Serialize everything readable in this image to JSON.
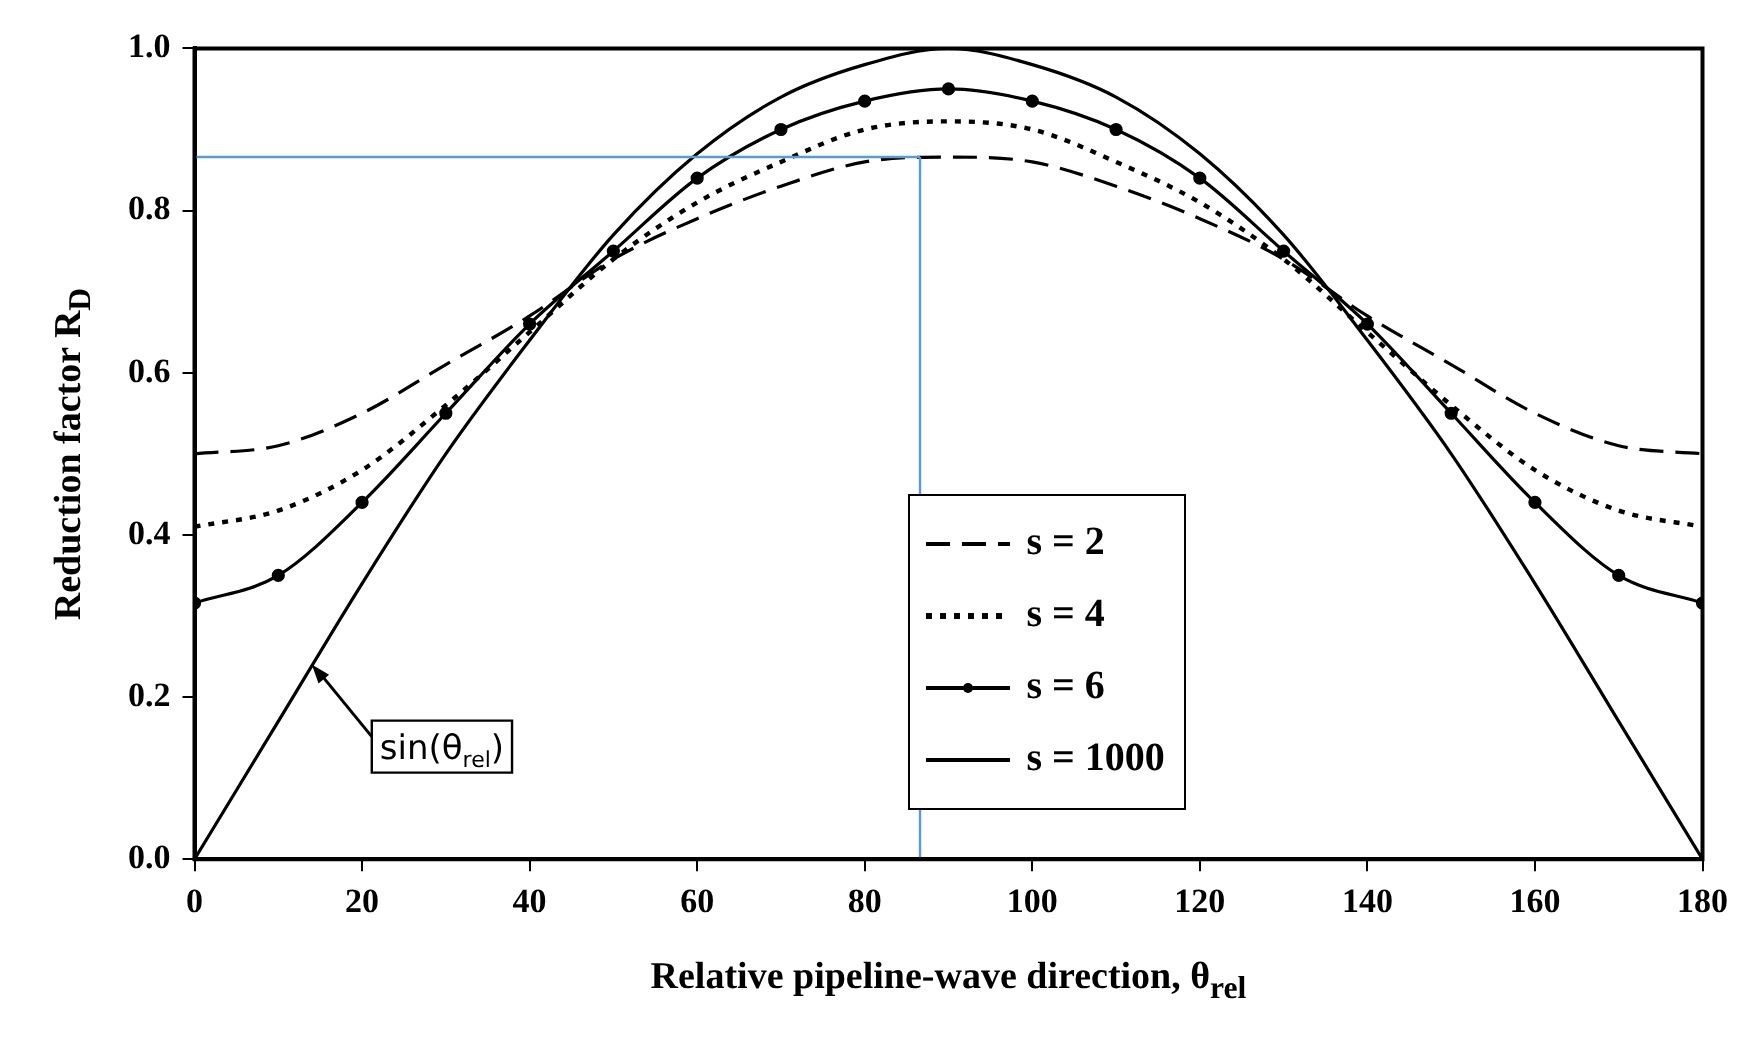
{
  "chart_data": {
    "type": "line",
    "xlabel": "Relative pipeline-wave direction, θ$_{rel}$",
    "ylabel": "Reduction factor R$_{D}$",
    "x": [
      0,
      10,
      20,
      30,
      40,
      50,
      60,
      70,
      80,
      90,
      100,
      110,
      120,
      130,
      140,
      150,
      160,
      170,
      180
    ],
    "series": [
      {
        "name": "s = 2",
        "color": "#000000",
        "line_style": "dashed",
        "marker": "none",
        "values": [
          0.5,
          0.51,
          0.55,
          0.61,
          0.67,
          0.74,
          0.79,
          0.83,
          0.86,
          0.866,
          0.86,
          0.83,
          0.79,
          0.74,
          0.67,
          0.61,
          0.55,
          0.51,
          0.5
        ]
      },
      {
        "name": "s = 4",
        "color": "#000000",
        "line_style": "dotted",
        "marker": "none",
        "values": [
          0.41,
          0.43,
          0.48,
          0.56,
          0.65,
          0.74,
          0.81,
          0.86,
          0.9,
          0.91,
          0.9,
          0.86,
          0.81,
          0.74,
          0.65,
          0.56,
          0.48,
          0.43,
          0.41
        ]
      },
      {
        "name": "s = 6",
        "color": "#000000",
        "line_style": "solid",
        "marker": "circle",
        "values": [
          0.316,
          0.35,
          0.44,
          0.55,
          0.66,
          0.75,
          0.84,
          0.9,
          0.935,
          0.95,
          0.935,
          0.9,
          0.84,
          0.75,
          0.66,
          0.55,
          0.44,
          0.35,
          0.316
        ]
      },
      {
        "name": "s = 1000",
        "color": "#000000",
        "line_style": "solid",
        "marker": "none",
        "values": [
          0,
          0.17,
          0.34,
          0.5,
          0.64,
          0.77,
          0.87,
          0.94,
          0.98,
          1.0,
          0.98,
          0.94,
          0.87,
          0.77,
          0.64,
          0.5,
          0.34,
          0.17,
          0
        ]
      }
    ],
    "xlim": [
      0,
      180
    ],
    "xticks": [
      0,
      20,
      40,
      60,
      80,
      100,
      120,
      140,
      160,
      180
    ],
    "ylim": [
      0,
      1
    ],
    "yticks": [
      {
        "value": 0,
        "label": "0.0"
      },
      {
        "value": 0.2,
        "label": "0.2"
      },
      {
        "value": 0.4,
        "label": "0.4"
      },
      {
        "value": 0.6,
        "label": "0.6"
      },
      {
        "value": 0.8,
        "label": "0.8"
      },
      {
        "value": 1,
        "label": "1.0"
      }
    ],
    "ref_lines": [
      {
        "axis": "y",
        "value": 0.866,
        "color": "#5b9bd5"
      },
      {
        "axis": "x",
        "value": 86.6,
        "color": "#5b9bd5"
      }
    ],
    "annotations": [
      {
        "text": "sin(θ$_{rel}$)",
        "x": 14,
        "y": 0.24
      }
    ],
    "grid": false,
    "legend": "center"
  }
}
